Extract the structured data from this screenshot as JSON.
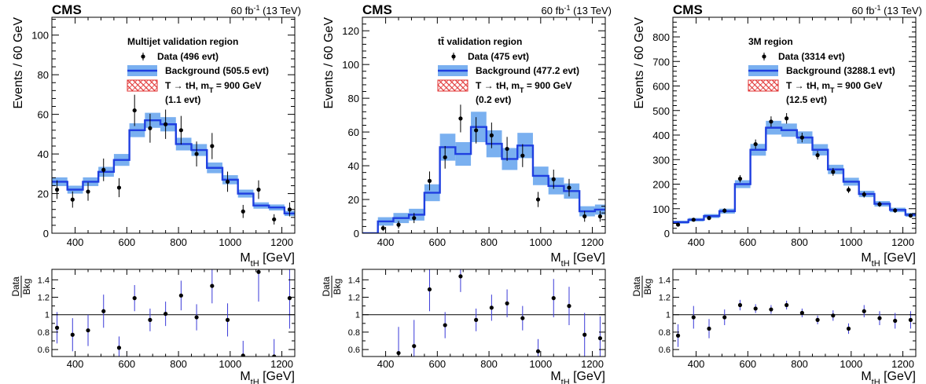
{
  "chart_data": [
    {
      "type": "histogram-with-ratio",
      "experiment_label": "CMS",
      "lumi": {
        "value": "60 fb",
        "exponent": "-1",
        "energy": "(13 TeV)"
      },
      "title": "Multijet validation region",
      "ylabel": "Events / 60 GeV",
      "xlabel": {
        "main": "M",
        "sub": "tH",
        "unit": "[GeV]"
      },
      "xlim": [
        310,
        1250
      ],
      "ylim": [
        0,
        109
      ],
      "xticks": [
        400,
        600,
        800,
        1000,
        1200
      ],
      "yticks": [
        0,
        20,
        40,
        60,
        80,
        100
      ],
      "bin_edges": [
        310,
        370,
        430,
        490,
        550,
        610,
        670,
        730,
        790,
        850,
        910,
        970,
        1030,
        1090,
        1150,
        1210,
        1250
      ],
      "background": [
        26,
        22,
        26,
        31,
        37,
        52,
        57,
        55,
        45,
        42,
        33,
        27,
        20,
        14,
        13,
        10
      ],
      "background_unc": [
        2.2,
        2,
        2.2,
        2.5,
        3,
        3.5,
        3.8,
        3.6,
        3.2,
        3,
        2.7,
        2.3,
        2,
        1.6,
        1.5,
        1.3
      ],
      "data_x": [
        330,
        390,
        450,
        510,
        570,
        630,
        690,
        750,
        810,
        870,
        930,
        990,
        1050,
        1110,
        1170,
        1230
      ],
      "data_y": [
        22,
        17,
        21,
        32,
        23,
        62,
        53,
        55,
        52,
        40,
        44,
        26,
        11,
        22,
        7,
        12
      ],
      "data_err": [
        4.7,
        4.1,
        4.6,
        5.7,
        4.8,
        7.9,
        7.3,
        7.4,
        7.2,
        6.3,
        6.6,
        5.1,
        3.3,
        4.7,
        2.6,
        3.5
      ],
      "legend": [
        {
          "type": "data",
          "label": "Data (496 evt)"
        },
        {
          "type": "background",
          "label": "Background (505.5 evt)"
        },
        {
          "type": "signal",
          "label_parts": [
            "T",
            "→",
            "tH, m",
            "T",
            "= 900 GeV"
          ],
          "label_line2": "(1.1 evt)"
        }
      ],
      "ratio": {
        "ylabel_num": "Data",
        "ylabel_den": "Bkg",
        "ylim": [
          0.52,
          1.52
        ],
        "yticks": [
          "0.6",
          "0.8",
          "1",
          "1.2",
          "1.4"
        ],
        "yticks_values": [
          0.6,
          0.8,
          1.0,
          1.2,
          1.4
        ],
        "x": [
          330,
          390,
          450,
          510,
          570,
          630,
          690,
          750,
          810,
          870,
          930,
          990,
          1050,
          1110,
          1170,
          1230
        ],
        "y": [
          0.85,
          0.77,
          0.82,
          1.04,
          0.62,
          1.19,
          0.94,
          1.01,
          1.22,
          0.97,
          1.33,
          0.94,
          0.53,
          1.49,
          0.52,
          1.19
        ],
        "err": [
          0.18,
          0.19,
          0.18,
          0.19,
          0.13,
          0.15,
          0.13,
          0.14,
          0.17,
          0.15,
          0.2,
          0.19,
          0.17,
          0.34,
          0.2,
          0.35
        ]
      }
    },
    {
      "type": "histogram-with-ratio",
      "experiment_label": "CMS",
      "lumi": {
        "value": "60 fb",
        "exponent": "-1",
        "energy": "(13 TeV)"
      },
      "title": "tt̄ validation region",
      "ylabel": "Events / 60 GeV",
      "xlabel": {
        "main": "M",
        "sub": "tH",
        "unit": "[GeV]"
      },
      "xlim": [
        310,
        1250
      ],
      "ylim": [
        0,
        128
      ],
      "xticks": [
        400,
        600,
        800,
        1000,
        1200
      ],
      "yticks": [
        0,
        20,
        40,
        60,
        80,
        100,
        120
      ],
      "bin_edges": [
        310,
        370,
        430,
        490,
        550,
        610,
        670,
        730,
        790,
        850,
        910,
        970,
        1030,
        1090,
        1150,
        1210,
        1250
      ],
      "background": [
        0,
        7,
        9,
        11,
        24,
        51,
        47,
        63,
        53,
        44,
        52,
        34,
        28,
        25,
        13,
        14
      ],
      "background_unc": [
        0,
        2.5,
        3,
        3.5,
        5,
        8,
        7,
        9,
        8,
        6.5,
        7.5,
        5.5,
        5,
        4.5,
        3,
        3
      ],
      "data_x": [
        390,
        450,
        510,
        570,
        630,
        690,
        750,
        810,
        870,
        930,
        990,
        1050,
        1110,
        1170,
        1230
      ],
      "data_y": [
        3,
        5,
        9,
        31,
        45,
        68,
        61,
        58,
        50,
        46,
        20,
        32,
        27,
        10,
        10
      ],
      "data_err": [
        1.7,
        2.2,
        3,
        5.6,
        6.7,
        8.2,
        7.8,
        7.6,
        7.1,
        6.8,
        4.5,
        5.7,
        5.2,
        3.2,
        3.2
      ],
      "legend": [
        {
          "type": "data",
          "label": "Data (475 evt)"
        },
        {
          "type": "background",
          "label": "Background (477.2 evt)"
        },
        {
          "type": "signal",
          "label_parts": [
            "T",
            "→",
            "tH, m",
            "T",
            "= 900 GeV"
          ],
          "label_line2": "(0.2 evt)"
        }
      ],
      "ratio": {
        "ylabel_num": "Data",
        "ylabel_den": "Bkg",
        "ylim": [
          0.52,
          1.52
        ],
        "yticks": [
          "0.6",
          "0.8",
          "1",
          "1.2",
          "1.4"
        ],
        "yticks_values": [
          0.6,
          0.8,
          1.0,
          1.2,
          1.4
        ],
        "x": [
          450,
          510,
          570,
          630,
          690,
          750,
          810,
          870,
          930,
          990,
          1050,
          1110,
          1170,
          1230
        ],
        "y": [
          0.56,
          0.64,
          1.29,
          0.88,
          1.44,
          0.94,
          1.08,
          1.13,
          0.96,
          0.58,
          1.19,
          1.1,
          0.77,
          0.73
        ],
        "err": [
          0.3,
          0.3,
          0.25,
          0.15,
          0.18,
          0.13,
          0.15,
          0.16,
          0.14,
          0.14,
          0.22,
          0.22,
          0.25,
          0.25
        ]
      }
    },
    {
      "type": "histogram-with-ratio",
      "experiment_label": "CMS",
      "lumi": {
        "value": "60 fb",
        "exponent": "-1",
        "energy": "(13 TeV)"
      },
      "title": "3M region",
      "ylabel": "Events / 60 GeV",
      "xlabel": {
        "main": "M",
        "sub": "tH",
        "unit": "[GeV]"
      },
      "xlim": [
        310,
        1250
      ],
      "ylim": [
        0,
        880
      ],
      "xticks": [
        400,
        600,
        800,
        1000,
        1200
      ],
      "yticks": [
        0,
        100,
        200,
        300,
        400,
        500,
        600,
        700,
        800
      ],
      "bin_edges": [
        310,
        370,
        430,
        490,
        550,
        610,
        670,
        730,
        790,
        850,
        910,
        970,
        1030,
        1090,
        1150,
        1210,
        1250
      ],
      "background": [
        45,
        55,
        70,
        90,
        200,
        340,
        430,
        420,
        390,
        340,
        260,
        210,
        160,
        120,
        95,
        75
      ],
      "background_unc": [
        6,
        7,
        8,
        10,
        16,
        24,
        28,
        27,
        25,
        23,
        19,
        16,
        13,
        11,
        9,
        8
      ],
      "data_x": [
        330,
        390,
        450,
        510,
        570,
        630,
        690,
        750,
        810,
        870,
        930,
        990,
        1050,
        1110,
        1170,
        1230
      ],
      "data_y": [
        35,
        55,
        62,
        92,
        222,
        363,
        455,
        468,
        390,
        318,
        250,
        177,
        158,
        118,
        93,
        72
      ],
      "data_err": [
        6,
        7.4,
        7.9,
        9.6,
        14.9,
        19,
        21.3,
        21.6,
        19.7,
        17.8,
        15.8,
        13.3,
        12.6,
        10.9,
        9.6,
        8.5
      ],
      "legend": [
        {
          "type": "data",
          "label": "Data (3314 evt)"
        },
        {
          "type": "background",
          "label": "Background (3288.1 evt)"
        },
        {
          "type": "signal",
          "label_parts": [
            "T",
            "→",
            "tH, m",
            "T",
            "= 900 GeV"
          ],
          "label_line2": "(12.5 evt)"
        }
      ],
      "ratio": {
        "ylabel_num": "Data",
        "ylabel_den": "Bkg",
        "ylim": [
          0.52,
          1.52
        ],
        "yticks": [
          "0.6",
          "0.8",
          "1",
          "1.2",
          "1.4"
        ],
        "yticks_values": [
          0.6,
          0.8,
          1.0,
          1.2,
          1.4
        ],
        "x": [
          330,
          390,
          450,
          510,
          570,
          630,
          690,
          750,
          810,
          870,
          930,
          990,
          1050,
          1110,
          1170,
          1230
        ],
        "y": [
          0.76,
          0.97,
          0.84,
          0.97,
          1.11,
          1.07,
          1.06,
          1.11,
          1.02,
          0.94,
          0.99,
          0.84,
          1.04,
          0.96,
          0.93,
          0.94
        ],
        "err": [
          0.13,
          0.13,
          0.11,
          0.09,
          0.06,
          0.05,
          0.05,
          0.05,
          0.05,
          0.05,
          0.06,
          0.06,
          0.07,
          0.08,
          0.09,
          0.1
        ]
      }
    }
  ],
  "colors": {
    "background_line": "#1f3fe0",
    "background_band": "#7ab0f0",
    "signal_hatch": "#e03030",
    "data": "#000000",
    "ratio_errorbar": "#3a3ad8"
  }
}
